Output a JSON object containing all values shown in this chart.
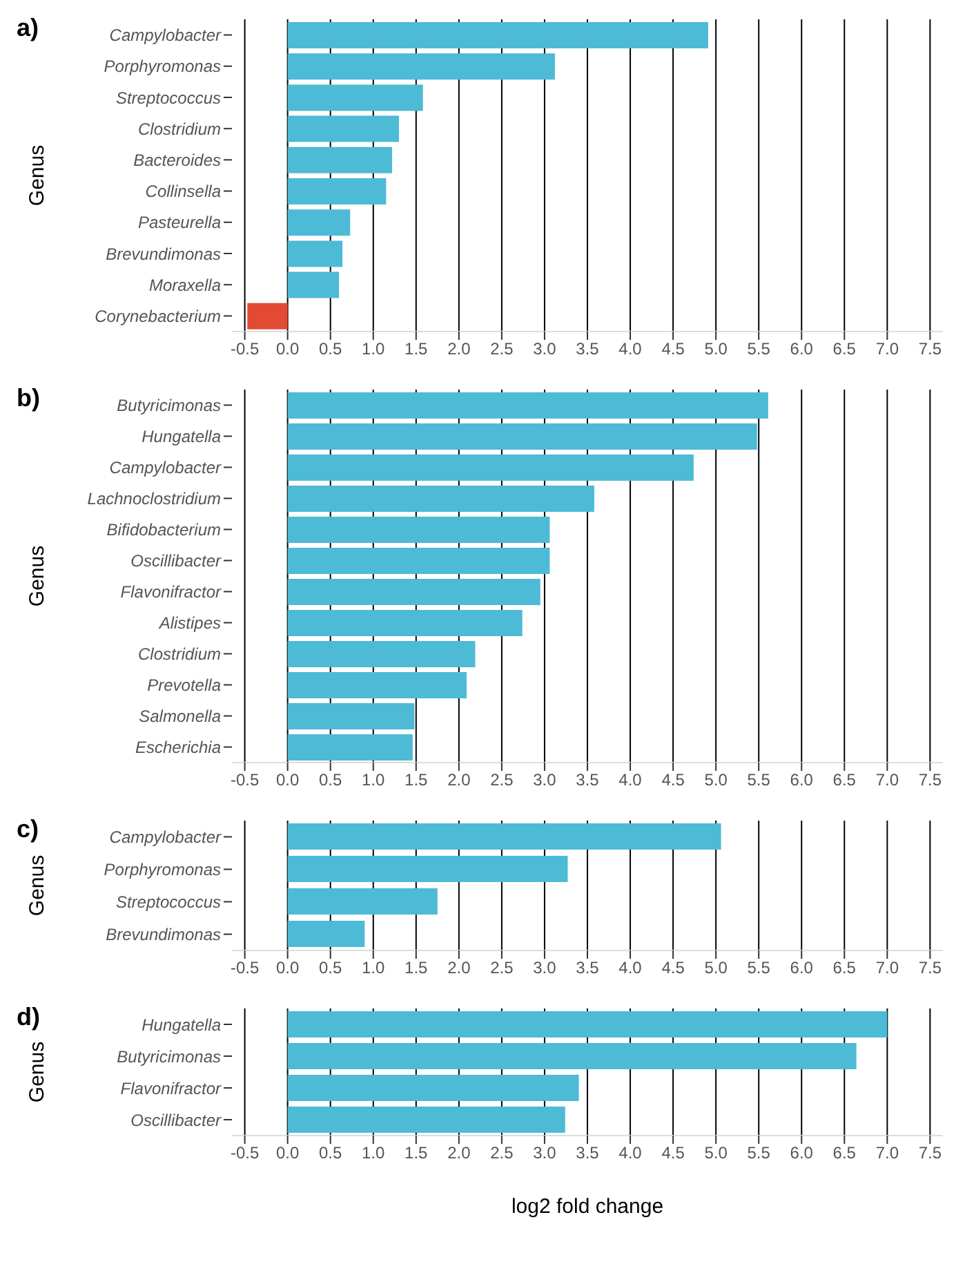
{
  "chart_data": [
    {
      "type": "bar",
      "orientation": "horizontal",
      "title": "a)",
      "ylabel": "Genus",
      "grid": "x",
      "xlim": [
        -0.65,
        7.65
      ],
      "xticks": [
        -0.5,
        {
          "value": 0,
          "label": "0.0"
        },
        0.5,
        {
          "value": 1,
          "label": "1.0"
        },
        1.5,
        {
          "value": 2,
          "label": "2.0"
        },
        2.5,
        {
          "value": 3,
          "label": "3.0"
        },
        3.5,
        {
          "value": 4,
          "label": "4.0"
        },
        4.5,
        {
          "value": 5,
          "label": "5.0"
        },
        5.5,
        {
          "value": 6,
          "label": "6.0"
        },
        6.5,
        {
          "value": 7,
          "label": "7.0"
        },
        7.5
      ],
      "categories": [
        "Campylobacter",
        "Porphyromonas",
        "Streptococcus",
        "Clostridium",
        "Bacteroides",
        "Collinsella",
        "Pasteurella",
        "Brevundimonas",
        "Moraxella",
        "Corynebacterium"
      ],
      "values": [
        4.91,
        3.12,
        1.58,
        1.3,
        1.22,
        1.15,
        0.73,
        0.64,
        0.6,
        -0.47
      ],
      "colors": [
        "#4dbad6",
        "#4dbad6",
        "#4dbad6",
        "#4dbad6",
        "#4dbad6",
        "#4dbad6",
        "#4dbad6",
        "#4dbad6",
        "#4dbad6",
        "#e34a33"
      ]
    },
    {
      "type": "bar",
      "orientation": "horizontal",
      "title": "b)",
      "ylabel": "Genus",
      "grid": "x",
      "xlim": [
        -0.65,
        7.65
      ],
      "xticks": [
        -0.5,
        {
          "value": 0,
          "label": "0.0"
        },
        0.5,
        {
          "value": 1,
          "label": "1.0"
        },
        1.5,
        {
          "value": 2,
          "label": "2.0"
        },
        2.5,
        {
          "value": 3,
          "label": "3.0"
        },
        3.5,
        {
          "value": 4,
          "label": "4.0"
        },
        4.5,
        {
          "value": 5,
          "label": "5.0"
        },
        5.5,
        {
          "value": 6,
          "label": "6.0"
        },
        6.5,
        {
          "value": 7,
          "label": "7.0"
        },
        7.5
      ],
      "categories": [
        "Butyricimonas",
        "Hungatella",
        "Campylobacter",
        "Lachnoclostridium",
        "Bifidobacterium",
        "Oscillibacter",
        "Flavonifractor",
        "Alistipes",
        "Clostridium",
        "Prevotella",
        "Salmonella",
        "Escherichia"
      ],
      "values": [
        5.61,
        5.48,
        4.74,
        3.58,
        3.06,
        3.06,
        2.95,
        2.74,
        2.19,
        2.09,
        1.48,
        1.46
      ],
      "colors": [
        "#4dbad6",
        "#4dbad6",
        "#4dbad6",
        "#4dbad6",
        "#4dbad6",
        "#4dbad6",
        "#4dbad6",
        "#4dbad6",
        "#4dbad6",
        "#4dbad6",
        "#4dbad6",
        "#4dbad6"
      ]
    },
    {
      "type": "bar",
      "orientation": "horizontal",
      "title": "c)",
      "ylabel": "Genus",
      "grid": "x",
      "xlim": [
        -0.65,
        7.65
      ],
      "xticks": [
        -0.5,
        {
          "value": 0,
          "label": "0.0"
        },
        0.5,
        {
          "value": 1,
          "label": "1.0"
        },
        1.5,
        {
          "value": 2,
          "label": "2.0"
        },
        2.5,
        {
          "value": 3,
          "label": "3.0"
        },
        3.5,
        {
          "value": 4,
          "label": "4.0"
        },
        4.5,
        {
          "value": 5,
          "label": "5.0"
        },
        5.5,
        {
          "value": 6,
          "label": "6.0"
        },
        6.5,
        {
          "value": 7,
          "label": "7.0"
        },
        7.5
      ],
      "categories": [
        "Campylobacter",
        "Porphyromonas",
        "Streptococcus",
        "Brevundimonas"
      ],
      "values": [
        5.06,
        3.27,
        1.75,
        0.9
      ],
      "colors": [
        "#4dbad6",
        "#4dbad6",
        "#4dbad6",
        "#4dbad6"
      ]
    },
    {
      "type": "bar",
      "orientation": "horizontal",
      "title": "d)",
      "ylabel": "Genus",
      "xlabel": "log2 fold change",
      "grid": "x",
      "xlim": [
        -0.65,
        7.65
      ],
      "xticks": [
        -0.5,
        {
          "value": 0,
          "label": "0.0"
        },
        0.5,
        {
          "value": 1,
          "label": "1.0"
        },
        1.5,
        {
          "value": 2,
          "label": "2.0"
        },
        2.5,
        {
          "value": 3,
          "label": "3.0"
        },
        3.5,
        {
          "value": 4,
          "label": "4.0"
        },
        4.5,
        {
          "value": 5,
          "label": "5.0"
        },
        5.5,
        {
          "value": 6,
          "label": "6.0"
        },
        6.5,
        {
          "value": 7,
          "label": "7.0"
        },
        7.5
      ],
      "categories": [
        "Hungatella",
        "Butyricimonas",
        "Flavonifractor",
        "Oscillibacter"
      ],
      "values": [
        7.0,
        6.64,
        3.4,
        3.24
      ],
      "colors": [
        "#4dbad6",
        "#4dbad6",
        "#4dbad6",
        "#4dbad6"
      ]
    }
  ]
}
